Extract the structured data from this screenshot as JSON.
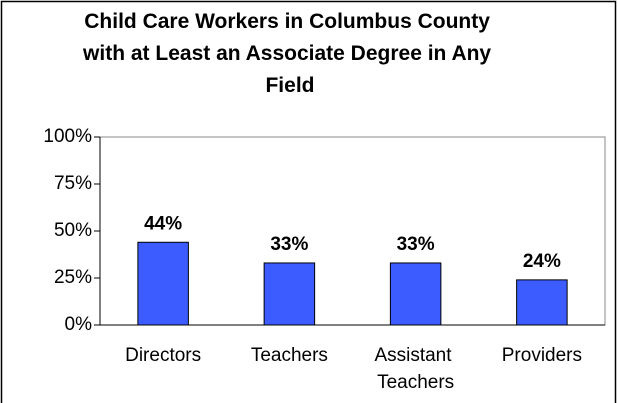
{
  "chart_data": {
    "type": "bar",
    "title": "Child Care Workers in Columbus County with at Least an Associate Degree in Any Field",
    "categories": [
      "Directors",
      "Teachers",
      "Assistant Teachers",
      "Providers"
    ],
    "values": [
      44,
      33,
      33,
      24
    ],
    "value_labels": [
      "44%",
      "33%",
      "33%",
      "24%"
    ],
    "color": "#3c5cff",
    "ylim": [
      0,
      100
    ],
    "yticks": [
      {
        "value": 0,
        "label": "0%"
      },
      {
        "value": 25,
        "label": "25%"
      },
      {
        "value": 50,
        "label": "50%"
      },
      {
        "value": 75,
        "label": "75%"
      },
      {
        "value": 100,
        "label": "100%"
      }
    ],
    "grid": false
  }
}
